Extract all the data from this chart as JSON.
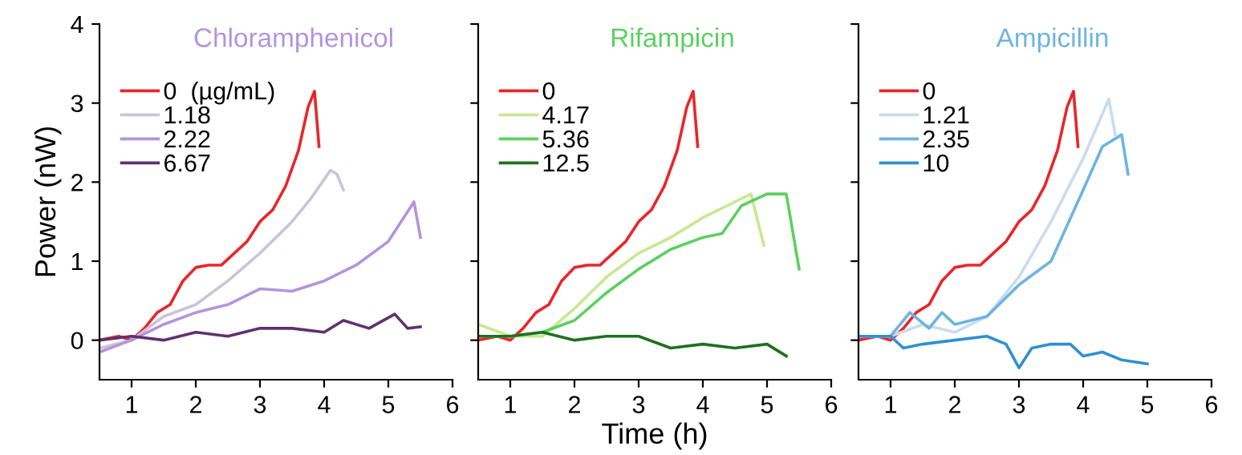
{
  "chart_data": [
    {
      "type": "line",
      "title": "Chloramphenicol",
      "ylabel": "Power (nW)",
      "xlim": [
        0.5,
        6
      ],
      "ylim": [
        -0.5,
        4
      ],
      "xticks": [
        1,
        2,
        3,
        4,
        5,
        6
      ],
      "yticks": [
        0,
        1,
        2,
        3,
        4
      ],
      "legend": "top left",
      "grid": false,
      "marker": "none",
      "line_style": "solid",
      "series": [
        {
          "name": "0  (µg/mL)",
          "color": "#e8262a",
          "x": [
            0.5,
            0.8,
            1.0,
            1.2,
            1.4,
            1.6,
            1.8,
            2.0,
            2.2,
            2.4,
            2.6,
            2.8,
            3.0,
            3.2,
            3.4,
            3.6,
            3.75,
            3.85,
            3.92
          ],
          "values": [
            0,
            0.05,
            0,
            0.15,
            0.35,
            0.45,
            0.75,
            0.92,
            0.95,
            0.95,
            1.1,
            1.25,
            1.5,
            1.65,
            1.95,
            2.4,
            2.95,
            3.15,
            2.45
          ]
        },
        {
          "name": "1.18",
          "color": "#cbc3d9",
          "x": [
            0.5,
            1.0,
            1.5,
            2.0,
            2.5,
            3.0,
            3.5,
            3.8,
            4.1,
            4.2,
            4.3
          ],
          "values": [
            -0.1,
            0.0,
            0.3,
            0.45,
            0.75,
            1.1,
            1.5,
            1.8,
            2.15,
            2.1,
            1.9
          ]
        },
        {
          "name": "2.22",
          "color": "#b494dc",
          "x": [
            0.5,
            1.0,
            1.5,
            2.0,
            2.5,
            3.0,
            3.5,
            4.0,
            4.5,
            5.0,
            5.4,
            5.5
          ],
          "values": [
            -0.15,
            0,
            0.2,
            0.35,
            0.45,
            0.65,
            0.62,
            0.75,
            0.95,
            1.25,
            1.75,
            1.3
          ]
        },
        {
          "name": "6.67",
          "color": "#603070",
          "x": [
            0.5,
            1.0,
            1.5,
            2.0,
            2.5,
            3.0,
            3.5,
            4.0,
            4.3,
            4.7,
            5.1,
            5.3,
            5.5
          ],
          "values": [
            0,
            0.05,
            0,
            0.1,
            0.05,
            0.15,
            0.15,
            0.1,
            0.25,
            0.15,
            0.33,
            0.15,
            0.17
          ]
        }
      ]
    },
    {
      "type": "line",
      "title": "Rifampicin",
      "xlabel": "Time (h)",
      "xlim": [
        0.5,
        6
      ],
      "ylim": [
        -0.5,
        4
      ],
      "xticks": [
        1,
        2,
        3,
        4,
        5,
        6
      ],
      "yticks": [
        0,
        1,
        2,
        3,
        4
      ],
      "tick_labels": "x",
      "legend": "top left",
      "grid": false,
      "marker": "none",
      "line_style": "solid",
      "series": [
        {
          "name": "0",
          "color": "#e8262a",
          "x": [
            0.5,
            0.8,
            1.0,
            1.2,
            1.4,
            1.6,
            1.8,
            2.0,
            2.2,
            2.4,
            2.6,
            2.8,
            3.0,
            3.2,
            3.4,
            3.6,
            3.75,
            3.85,
            3.92
          ],
          "values": [
            0,
            0.05,
            0,
            0.15,
            0.35,
            0.45,
            0.75,
            0.92,
            0.95,
            0.95,
            1.1,
            1.25,
            1.5,
            1.65,
            1.95,
            2.4,
            2.95,
            3.15,
            2.45
          ]
        },
        {
          "name": "4.17",
          "color": "#c8e890",
          "x": [
            0.5,
            1.0,
            1.5,
            2.0,
            2.5,
            3.0,
            3.5,
            4.0,
            4.5,
            4.75,
            4.95
          ],
          "values": [
            0.2,
            0.05,
            0.05,
            0.4,
            0.8,
            1.1,
            1.3,
            1.55,
            1.75,
            1.85,
            1.2
          ]
        },
        {
          "name": "5.36",
          "color": "#5cd060",
          "x": [
            0.5,
            1.0,
            1.5,
            2.0,
            2.5,
            3.0,
            3.5,
            4.0,
            4.3,
            4.6,
            5.0,
            5.3,
            5.5
          ],
          "values": [
            0.05,
            0.05,
            0.1,
            0.25,
            0.6,
            0.9,
            1.15,
            1.3,
            1.35,
            1.7,
            1.85,
            1.85,
            0.9
          ]
        },
        {
          "name": "12.5",
          "color": "#207020",
          "x": [
            0.5,
            1.0,
            1.5,
            2.0,
            2.5,
            3.0,
            3.5,
            4.0,
            4.5,
            5.0,
            5.3
          ],
          "values": [
            0.05,
            0.05,
            0.1,
            0.0,
            0.05,
            0.05,
            -0.1,
            -0.05,
            -0.1,
            -0.05,
            -0.2
          ]
        }
      ]
    },
    {
      "type": "line",
      "title": "Ampicillin",
      "xlim": [
        0.5,
        6
      ],
      "ylim": [
        -0.5,
        4
      ],
      "xticks": [
        1,
        2,
        3,
        4,
        5,
        6
      ],
      "yticks": [
        0,
        1,
        2,
        3,
        4
      ],
      "tick_labels": "x",
      "legend": "top left",
      "grid": false,
      "marker": "none",
      "line_style": "solid",
      "series": [
        {
          "name": "0",
          "color": "#e8262a",
          "x": [
            0.5,
            0.8,
            1.0,
            1.2,
            1.4,
            1.6,
            1.8,
            2.0,
            2.2,
            2.4,
            2.6,
            2.8,
            3.0,
            3.2,
            3.4,
            3.6,
            3.75,
            3.85,
            3.92
          ],
          "values": [
            0,
            0.05,
            0,
            0.15,
            0.35,
            0.45,
            0.75,
            0.92,
            0.95,
            0.95,
            1.1,
            1.25,
            1.5,
            1.65,
            1.95,
            2.4,
            2.95,
            3.15,
            2.45
          ]
        },
        {
          "name": "1.21",
          "color": "#c8dcf0",
          "x": [
            0.5,
            1.0,
            1.5,
            2.0,
            2.5,
            3.0,
            3.5,
            4.0,
            4.4,
            4.5
          ],
          "values": [
            0.05,
            0.05,
            0.2,
            0.1,
            0.3,
            0.8,
            1.5,
            2.3,
            3.05,
            2.6
          ]
        },
        {
          "name": "2.35",
          "color": "#6cb4e4",
          "x": [
            0.5,
            1.0,
            1.3,
            1.6,
            1.8,
            2.0,
            2.5,
            3.0,
            3.5,
            4.0,
            4.3,
            4.6,
            4.7
          ],
          "values": [
            0.05,
            0.05,
            0.35,
            0.15,
            0.35,
            0.2,
            0.3,
            0.7,
            1.0,
            1.9,
            2.45,
            2.6,
            2.1
          ]
        },
        {
          "name": "10",
          "color": "#3090d0",
          "x": [
            0.5,
            1.0,
            1.2,
            1.5,
            2.0,
            2.5,
            2.8,
            3.0,
            3.2,
            3.5,
            3.8,
            4.0,
            4.3,
            4.6,
            5.0
          ],
          "values": [
            0.05,
            0.05,
            -0.1,
            -0.05,
            0.0,
            0.05,
            -0.05,
            -0.35,
            -0.1,
            -0.05,
            -0.05,
            -0.2,
            -0.15,
            -0.25,
            -0.3
          ]
        }
      ]
    }
  ]
}
